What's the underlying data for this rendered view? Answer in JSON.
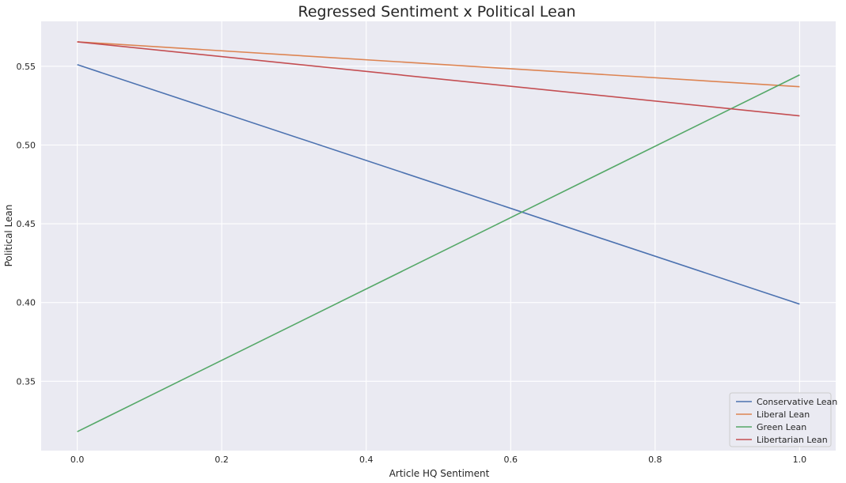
{
  "chart_data": {
    "type": "line",
    "title": "Regressed Sentiment x Political Lean",
    "xlabel": "Article HQ Sentiment",
    "ylabel": "Political Lean",
    "xlim": [
      -0.05,
      1.05
    ],
    "ylim": [
      0.306,
      0.5785
    ],
    "x_ticks": [
      0.0,
      0.2,
      0.4,
      0.6,
      0.8,
      1.0
    ],
    "x_tick_labels": [
      "0.0",
      "0.2",
      "0.4",
      "0.6",
      "0.8",
      "1.0"
    ],
    "y_ticks": [
      0.35,
      0.4,
      0.45,
      0.5,
      0.55
    ],
    "y_tick_labels": [
      "0.35",
      "0.40",
      "0.45",
      "0.50",
      "0.55"
    ],
    "grid": true,
    "legend_position": "bottom-right",
    "series": [
      {
        "name": "Conservative Lean",
        "color": "#4c72b0",
        "x": [
          0.0,
          1.0
        ],
        "y": [
          0.551,
          0.399
        ]
      },
      {
        "name": "Liberal Lean",
        "color": "#dd8452",
        "x": [
          0.0,
          1.0
        ],
        "y": [
          0.5655,
          0.537
        ]
      },
      {
        "name": "Green Lean",
        "color": "#55a868",
        "x": [
          0.0,
          1.0
        ],
        "y": [
          0.318,
          0.5445
        ]
      },
      {
        "name": "Libertarian Lean",
        "color": "#c44e52",
        "x": [
          0.0,
          1.0
        ],
        "y": [
          0.5655,
          0.5185
        ]
      }
    ]
  }
}
